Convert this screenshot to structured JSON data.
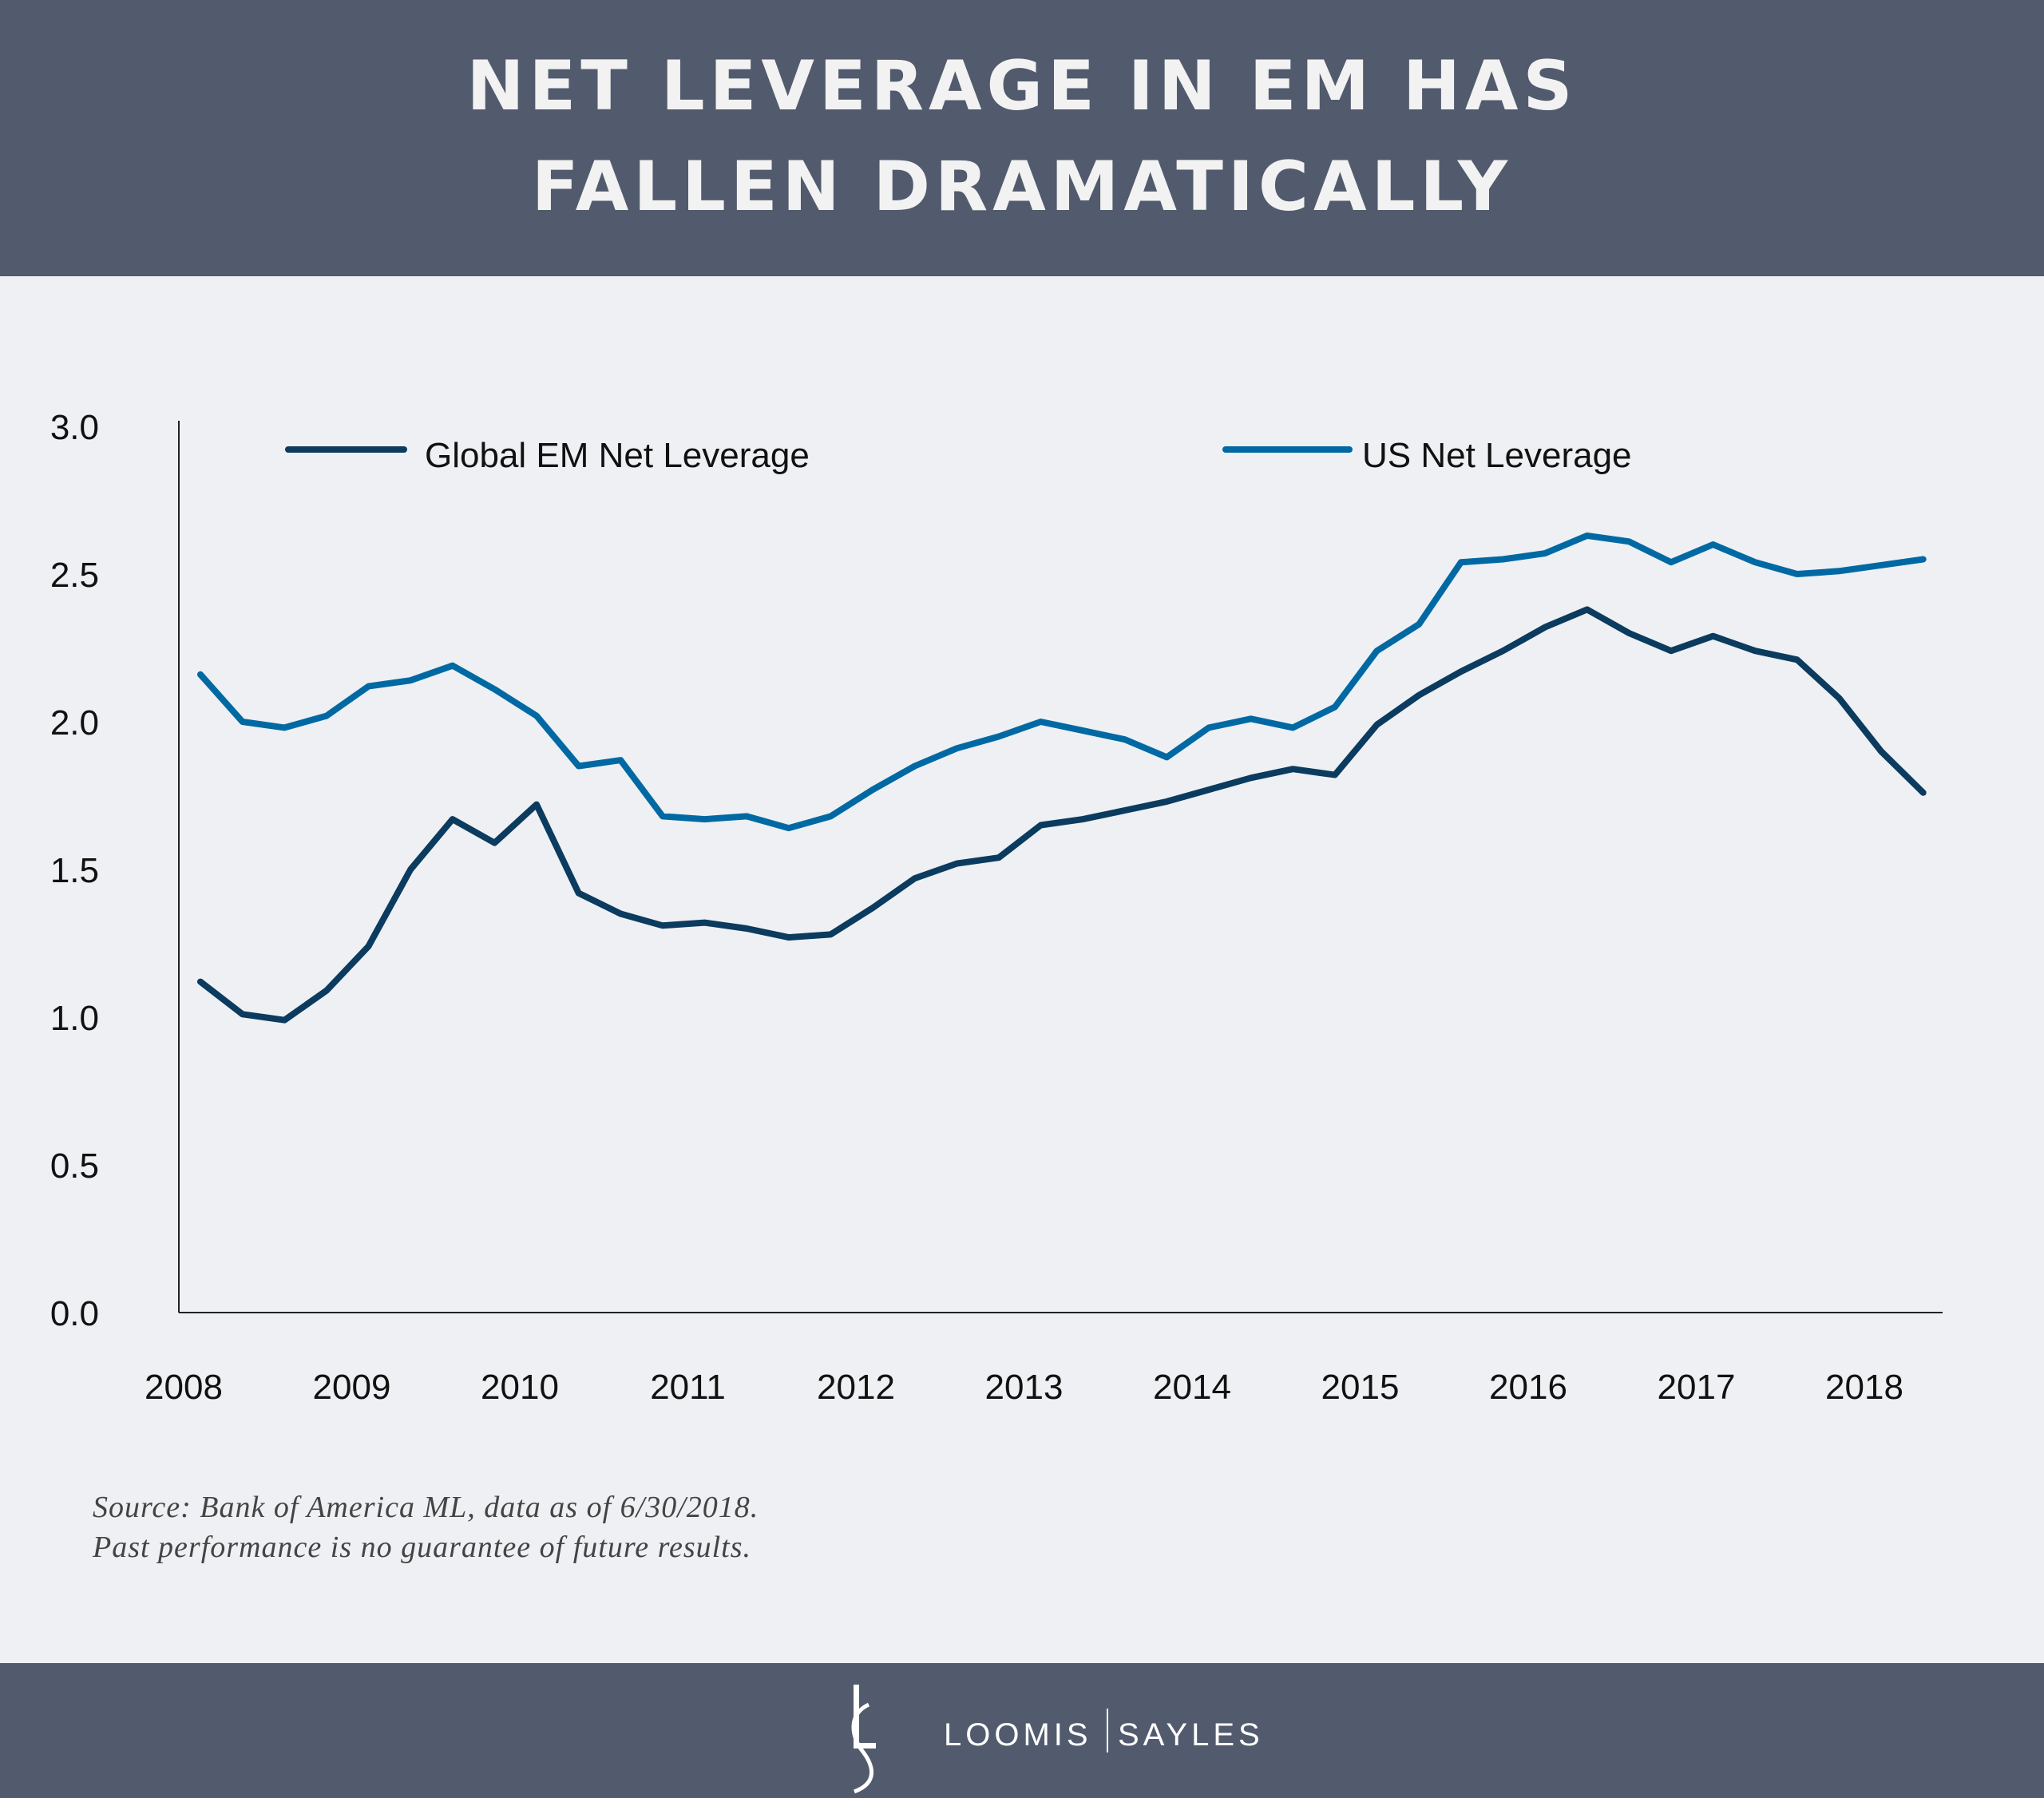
{
  "header": {
    "title_line1": "NET LEVERAGE IN EM HAS",
    "title_line2": "FALLEN DRAMATICALLY"
  },
  "footer": {
    "logo_monogram": "LS",
    "brand_left": "LOOMIS",
    "brand_right": "SAYLES"
  },
  "source": {
    "line1": "Source: Bank of America ML, data as of 6/30/2018.",
    "line2": "Past performance is no guarantee of future results."
  },
  "colors": {
    "header_bg": "#525b6d",
    "background": "#eef0f3",
    "em": "#0b3b5e",
    "us": "#0069a3"
  },
  "chart_data": {
    "type": "line",
    "title": "NET LEVERAGE IN EM HAS FALLEN DRAMATICALLY",
    "xlabel": "",
    "ylabel": "",
    "ylim": [
      0,
      3.0
    ],
    "xlim": [
      2008,
      2018.5
    ],
    "yticks": [
      "0.0",
      "0.5",
      "1.0",
      "1.5",
      "2.0",
      "2.5",
      "3.0"
    ],
    "xticks": [
      "2008",
      "2009",
      "2010",
      "2011",
      "2012",
      "2013",
      "2014",
      "2015",
      "2016",
      "2017",
      "2018"
    ],
    "grid": false,
    "legend_position": "top",
    "x": [
      "2008Q1",
      "2008Q2",
      "2008Q3",
      "2008Q4",
      "2009Q1",
      "2009Q2",
      "2009Q3",
      "2009Q4",
      "2010Q1",
      "2010Q2",
      "2010Q3",
      "2010Q4",
      "2011Q1",
      "2011Q2",
      "2011Q3",
      "2011Q4",
      "2012Q1",
      "2012Q2",
      "2012Q3",
      "2012Q4",
      "2013Q1",
      "2013Q2",
      "2013Q3",
      "2013Q4",
      "2014Q1",
      "2014Q2",
      "2014Q3",
      "2014Q4",
      "2015Q1",
      "2015Q2",
      "2015Q3",
      "2015Q4",
      "2016Q1",
      "2016Q2",
      "2016Q3",
      "2016Q4",
      "2017Q1",
      "2017Q2",
      "2017Q3",
      "2017Q4",
      "2018Q1",
      "2018Q2"
    ],
    "series": [
      {
        "name": "Global EM Net Leverage",
        "color": "#0b3b5e",
        "values": [
          1.12,
          1.01,
          0.99,
          1.09,
          1.24,
          1.5,
          1.67,
          1.59,
          1.72,
          1.42,
          1.35,
          1.31,
          1.32,
          1.3,
          1.27,
          1.28,
          1.37,
          1.47,
          1.52,
          1.54,
          1.65,
          1.67,
          1.7,
          1.73,
          1.77,
          1.81,
          1.84,
          1.82,
          1.99,
          2.09,
          2.17,
          2.24,
          2.32,
          2.38,
          2.3,
          2.24,
          2.29,
          2.24,
          2.21,
          2.08,
          1.9,
          1.76
        ]
      },
      {
        "name": "US Net Leverage",
        "color": "#0069a3",
        "values": [
          2.16,
          2.0,
          1.98,
          2.02,
          2.12,
          2.14,
          2.19,
          2.11,
          2.02,
          1.85,
          1.87,
          1.68,
          1.67,
          1.68,
          1.64,
          1.68,
          1.77,
          1.85,
          1.91,
          1.95,
          2.0,
          1.97,
          1.94,
          1.88,
          1.98,
          2.01,
          1.98,
          2.05,
          2.24,
          2.33,
          2.54,
          2.55,
          2.57,
          2.63,
          2.61,
          2.54,
          2.6,
          2.54,
          2.5,
          2.51,
          2.53,
          2.55
        ]
      }
    ]
  }
}
